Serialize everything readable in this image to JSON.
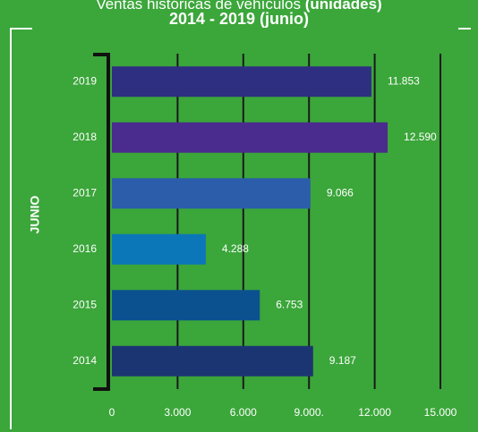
{
  "chart_data": {
    "type": "bar",
    "orientation": "horizontal",
    "title": "Ventas históricas de vehículos",
    "title_unit": "(unidades)",
    "subtitle": "2014 - 2019 (junio)",
    "y_label": "JUNIO",
    "categories": [
      "2019",
      "2018",
      "2017",
      "2016",
      "2015",
      "2014"
    ],
    "values": [
      11853,
      12590,
      9066,
      4288,
      6753,
      9187
    ],
    "value_labels": [
      "11.853",
      "12.590",
      "9.066",
      "4.288",
      "6.753",
      "9.187"
    ],
    "colors": [
      "#2e2f80",
      "#4a2b8e",
      "#2b5dab",
      "#0b77b9",
      "#0b518f",
      "#1b3572"
    ],
    "xlim": [
      0,
      15000
    ],
    "xticks": [
      0,
      {
        "value": 3000,
        "label": "3.000"
      },
      {
        "value": 6000,
        "label": "6.000"
      },
      {
        "value": 9000,
        "label": "9.000."
      },
      {
        "value": 12000,
        "label": "12.000"
      },
      {
        "value": 15000,
        "label": "15.000"
      }
    ],
    "grid": true
  }
}
